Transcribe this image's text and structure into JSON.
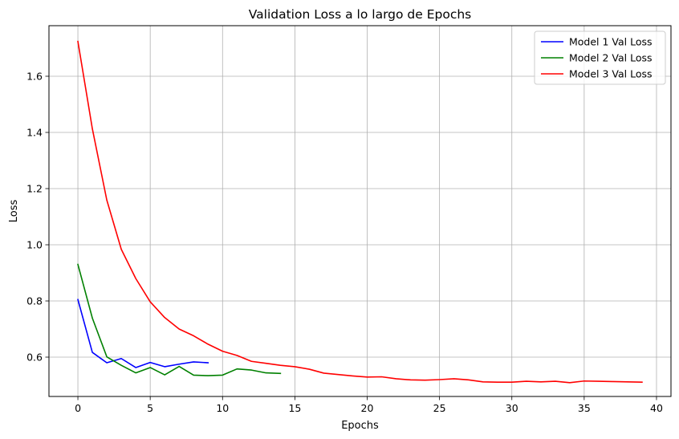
{
  "chart_data": {
    "type": "line",
    "title": "Validation Loss a lo largo de Epochs",
    "xlabel": "Epochs",
    "ylabel": "Loss",
    "xlim": [
      -2,
      41
    ],
    "ylim": [
      0.46,
      1.78
    ],
    "xticks": [
      0,
      5,
      10,
      15,
      20,
      25,
      30,
      35,
      40
    ],
    "yticks": [
      0.6,
      0.8,
      1.0,
      1.2,
      1.4,
      1.6
    ],
    "xtick_labels": [
      "0",
      "5",
      "10",
      "15",
      "20",
      "25",
      "30",
      "35",
      "40"
    ],
    "ytick_labels": [
      "0.6",
      "0.8",
      "1.0",
      "1.2",
      "1.4",
      "1.6"
    ],
    "grid": true,
    "legend_position": "top-right",
    "series": [
      {
        "name": "Model 1 Val Loss",
        "color": "#0000ff",
        "x": [
          0,
          1,
          2,
          3,
          4,
          5,
          6,
          7,
          8,
          9
        ],
        "y": [
          0.805,
          0.617,
          0.58,
          0.595,
          0.563,
          0.581,
          0.566,
          0.575,
          0.583,
          0.58
        ]
      },
      {
        "name": "Model 2 Val Loss",
        "color": "#008000",
        "x": [
          0,
          1,
          2,
          3,
          4,
          5,
          6,
          7,
          8,
          9,
          10,
          11,
          12,
          13,
          14
        ],
        "y": [
          0.93,
          0.739,
          0.601,
          0.571,
          0.544,
          0.563,
          0.537,
          0.567,
          0.536,
          0.534,
          0.536,
          0.558,
          0.554,
          0.544,
          0.542
        ]
      },
      {
        "name": "Model 3 Val Loss",
        "color": "#ff0000",
        "x": [
          0,
          1,
          2,
          3,
          4,
          5,
          6,
          7,
          8,
          9,
          10,
          11,
          12,
          13,
          14,
          15,
          16,
          17,
          18,
          19,
          20,
          21,
          22,
          23,
          24,
          25,
          26,
          27,
          28,
          29,
          30,
          31,
          32,
          33,
          34,
          35,
          36,
          37,
          38,
          39
        ],
        "y": [
          1.724,
          1.413,
          1.159,
          0.984,
          0.88,
          0.797,
          0.741,
          0.7,
          0.676,
          0.646,
          0.621,
          0.606,
          0.585,
          0.578,
          0.571,
          0.566,
          0.557,
          0.543,
          0.538,
          0.533,
          0.529,
          0.53,
          0.523,
          0.519,
          0.518,
          0.52,
          0.523,
          0.519,
          0.512,
          0.511,
          0.511,
          0.514,
          0.512,
          0.514,
          0.509,
          0.515,
          0.514,
          0.513,
          0.512,
          0.511
        ]
      }
    ]
  }
}
